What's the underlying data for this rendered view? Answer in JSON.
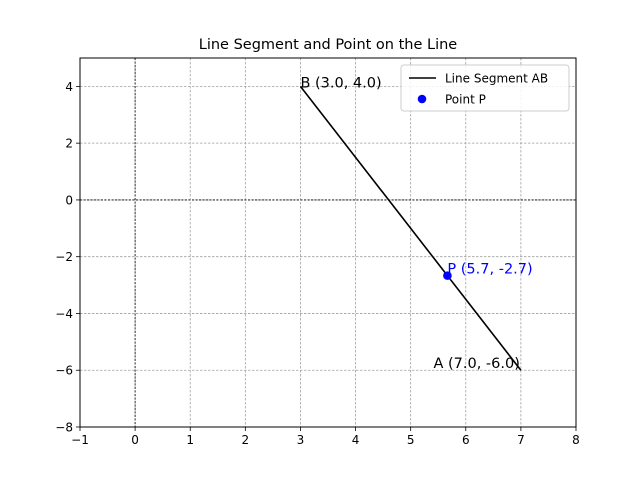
{
  "chart_data": {
    "type": "line",
    "title": "Line Segment and Point on the Line",
    "xlim": [
      -1,
      8
    ],
    "ylim": [
      -8,
      5
    ],
    "x_ticks": [
      -1,
      0,
      1,
      2,
      3,
      4,
      5,
      6,
      7,
      8
    ],
    "y_ticks": [
      -8,
      -6,
      -4,
      -2,
      0,
      2,
      4
    ],
    "x_tick_labels": [
      "−1",
      "0",
      "1",
      "2",
      "3",
      "4",
      "5",
      "6",
      "7",
      "8"
    ],
    "y_tick_labels": [
      "−8",
      "−6",
      "−4",
      "−2",
      "0",
      "2",
      "4"
    ],
    "grid": true,
    "legend_position": "top-right",
    "series": [
      {
        "name": "Line Segment AB",
        "kind": "line",
        "color": "#000000",
        "x": [
          7.0,
          3.0
        ],
        "y": [
          -6.0,
          4.0
        ]
      },
      {
        "name": "Point P",
        "kind": "point",
        "color": "#0000ff",
        "x": [
          5.667
        ],
        "y": [
          -2.667
        ]
      }
    ],
    "annotations": [
      {
        "text": "A (7.0, -6.0)",
        "x": 7.0,
        "y": -6.0,
        "color": "#000000",
        "anchor": "end"
      },
      {
        "text": "B (3.0, 4.0)",
        "x": 3.0,
        "y": 4.0,
        "color": "#000000",
        "anchor": "start"
      },
      {
        "text": "P (5.7, -2.7)",
        "x": 5.667,
        "y": -2.667,
        "color": "#0000ff",
        "anchor": "start"
      }
    ]
  }
}
